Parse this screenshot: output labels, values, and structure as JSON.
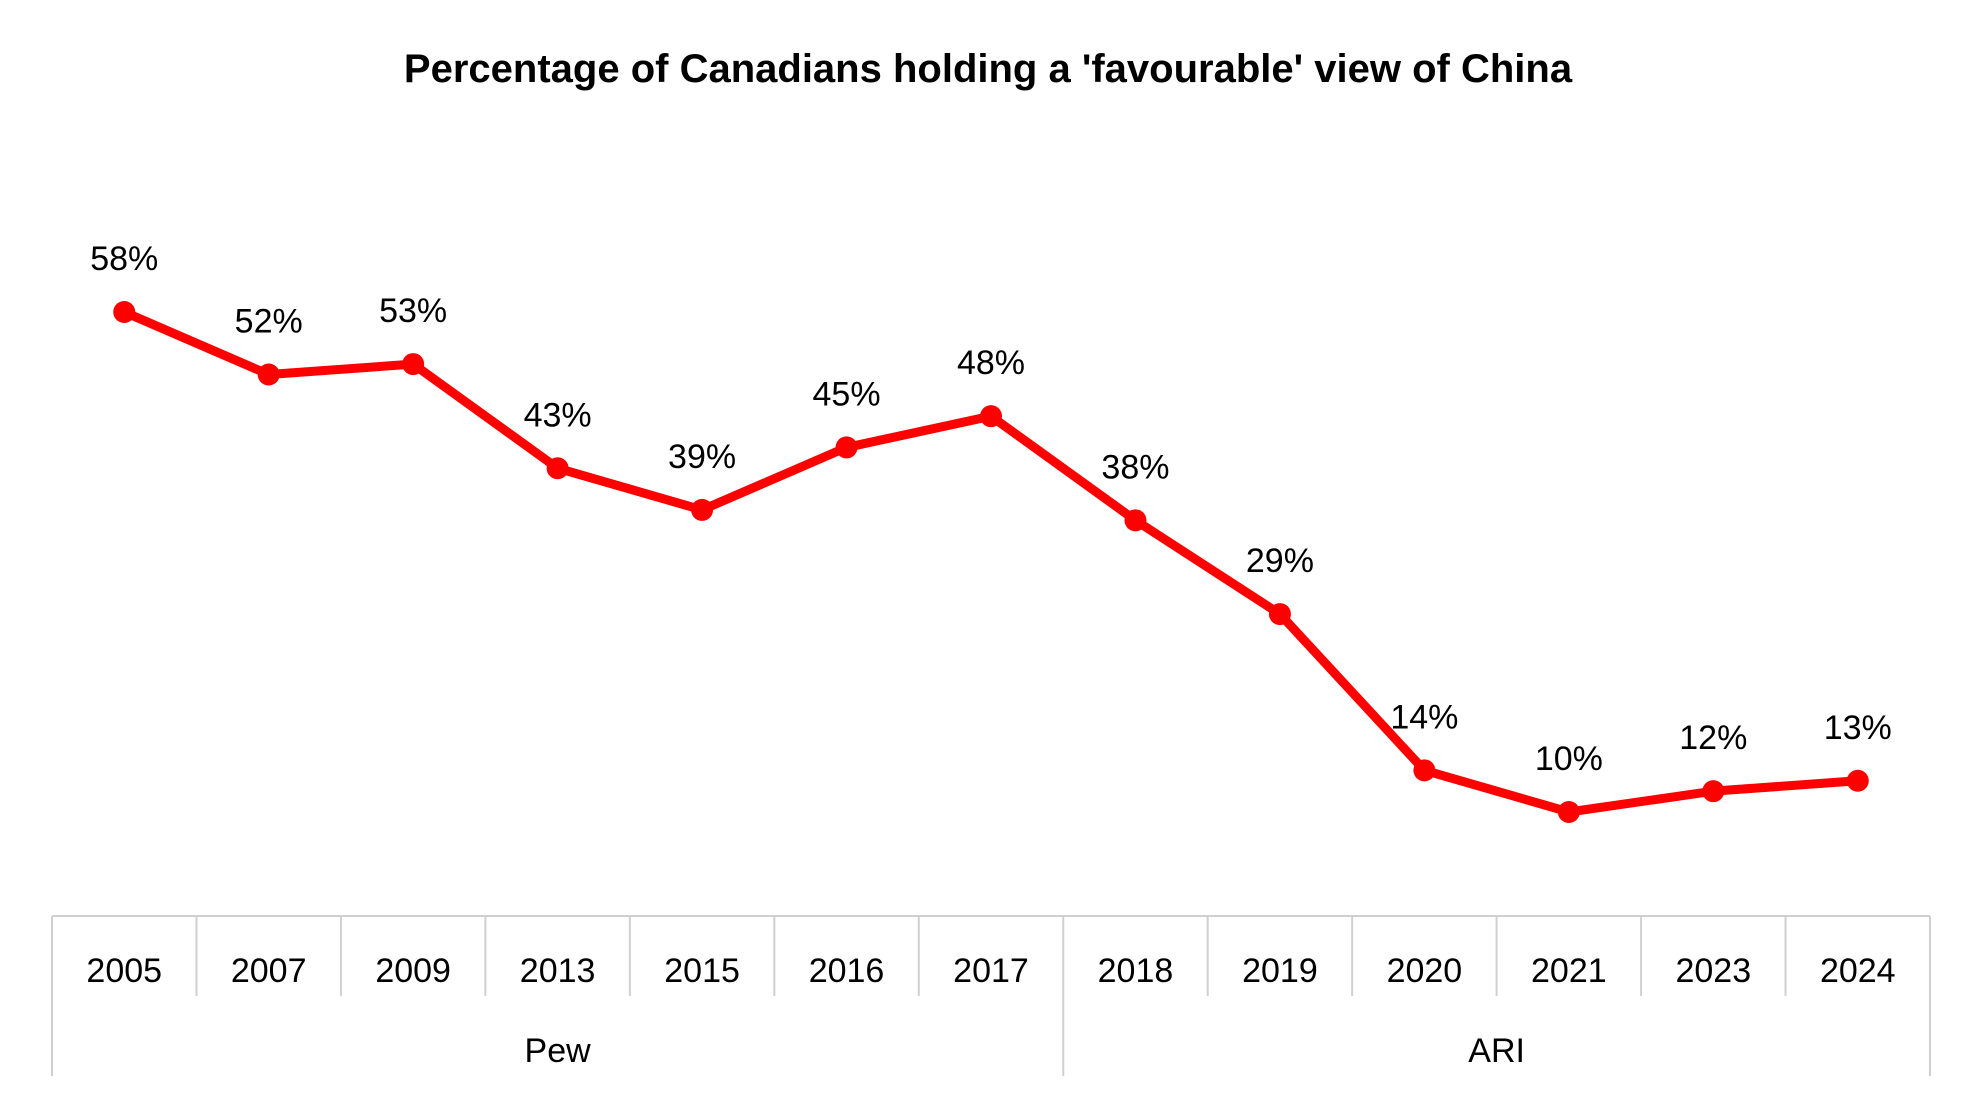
{
  "chart_data": {
    "type": "line",
    "title": "Percentage of Canadians holding a 'favourable' view of China",
    "categories": [
      "2005",
      "2007",
      "2009",
      "2013",
      "2015",
      "2016",
      "2017",
      "2018",
      "2019",
      "2020",
      "2021",
      "2023",
      "2024"
    ],
    "category_groups": [
      {
        "label": "Pew",
        "count": 7
      },
      {
        "label": "ARI",
        "count": 6
      }
    ],
    "series": [
      {
        "values": [
          58,
          52,
          53,
          43,
          39,
          45,
          48,
          38,
          29,
          14,
          10,
          12,
          13
        ],
        "data_labels": [
          "58%",
          "52%",
          "53%",
          "43%",
          "39%",
          "45%",
          "48%",
          "38%",
          "29%",
          "14%",
          "10%",
          "12%",
          "13%"
        ],
        "color": "#ff0000"
      }
    ],
    "ylim": [
      0,
      70
    ],
    "grid": false,
    "legend": "none"
  }
}
